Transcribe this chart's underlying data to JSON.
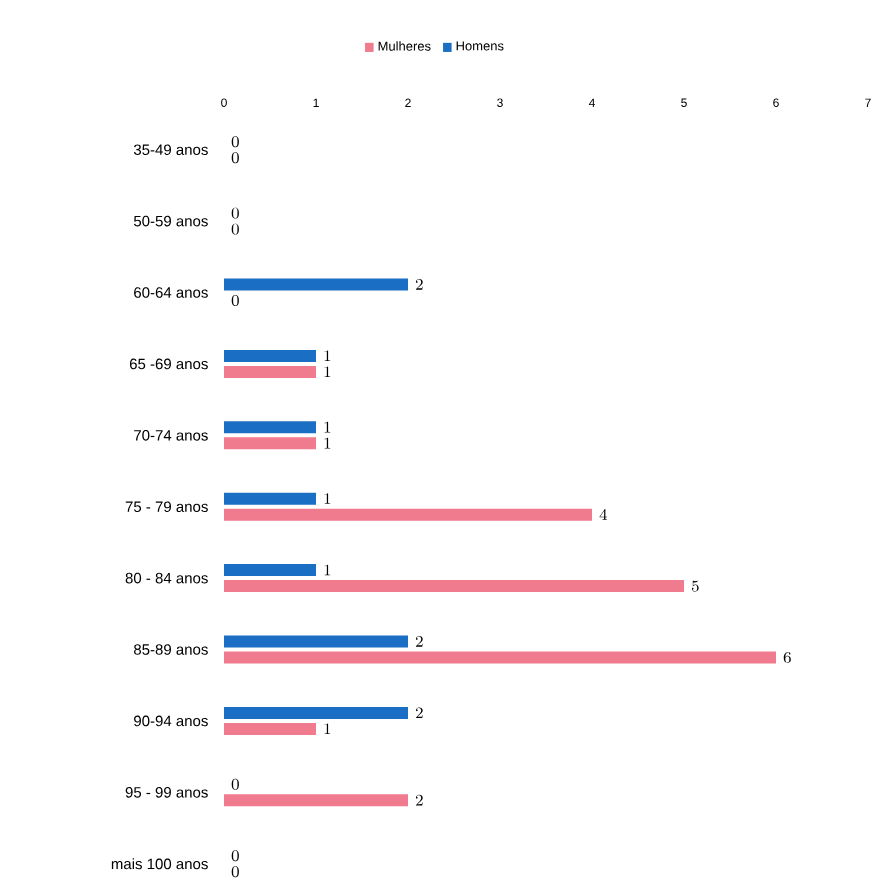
{
  "chart_data": {
    "type": "bar",
    "orientation": "horizontal",
    "categories": [
      "35-49 anos",
      "50-59 anos",
      "60-64 anos",
      "65 -69 anos",
      "70-74 anos",
      "75 - 79 anos",
      "80 - 84 anos",
      "85-89 anos",
      "90-94 anos",
      "95 - 99 anos",
      "mais 100 anos"
    ],
    "series": [
      {
        "name": "Mulheres",
        "color": "#f07a8e",
        "values": [
          0,
          0,
          0,
          1,
          1,
          4,
          5,
          6,
          1,
          2,
          0
        ]
      },
      {
        "name": "Homens",
        "color": "#1a6fc4",
        "values": [
          0,
          0,
          2,
          1,
          1,
          1,
          1,
          2,
          2,
          0,
          0
        ]
      }
    ],
    "xlim": [
      0,
      7
    ],
    "xticks": [
      0,
      1,
      2,
      3,
      4,
      5,
      6,
      7
    ],
    "data_labels": true,
    "legend": "top",
    "grid": false
  }
}
